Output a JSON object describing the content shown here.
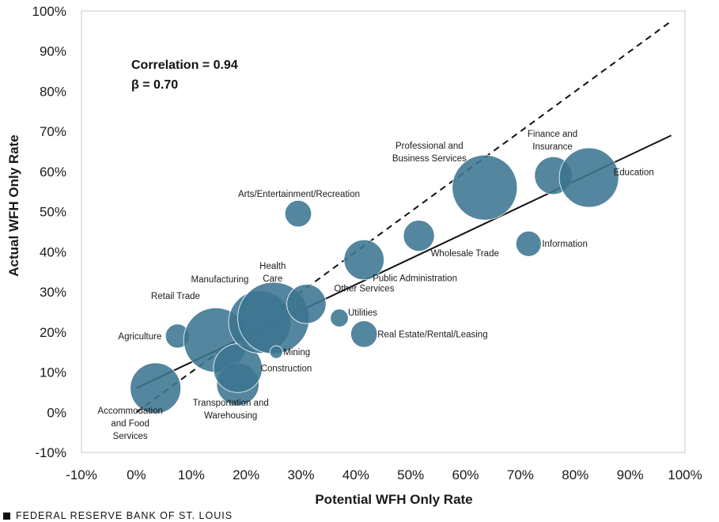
{
  "chart_data": {
    "type": "scatter",
    "xlabel": "Potential WFH Only Rate",
    "ylabel": "Actual WFH Only Rate",
    "xlim": [
      -10,
      100
    ],
    "ylim": [
      -10,
      100
    ],
    "x_ticks": [
      "-10%",
      "0%",
      "10%",
      "20%",
      "30%",
      "40%",
      "50%",
      "60%",
      "70%",
      "80%",
      "90%",
      "100%"
    ],
    "y_ticks": [
      "-10%",
      "0%",
      "10%",
      "20%",
      "30%",
      "40%",
      "50%",
      "60%",
      "70%",
      "80%",
      "90%",
      "100%"
    ],
    "grid": false,
    "annotations": {
      "correlation": "Correlation  = 0.94",
      "beta": "β = 0.70"
    },
    "lines": [
      {
        "style": "solid",
        "x": [
          0,
          97.5
        ],
        "y": [
          6,
          69
        ]
      },
      {
        "style": "dashed",
        "x": [
          0,
          97.5
        ],
        "y": [
          0,
          97.5
        ]
      }
    ],
    "points": [
      {
        "label": "Accommodation\nand Food\nServices",
        "x": 3.5,
        "y": 6,
        "size": 4.0
      },
      {
        "label": "Agriculture",
        "x": 7.5,
        "y": 19,
        "size": 0.9
      },
      {
        "label": "Retail Trade",
        "x": 14.5,
        "y": 18,
        "size": 6.5
      },
      {
        "label": "Transportation and\nWarehousing",
        "x": 18.5,
        "y": 7,
        "size": 2.8
      },
      {
        "label": "Construction",
        "x": 18.5,
        "y": 11,
        "size": 3.7
      },
      {
        "label": "Manufacturing",
        "x": 22.5,
        "y": 22.5,
        "size": 6.1
      },
      {
        "label": "Health\nCare",
        "x": 25,
        "y": 23.5,
        "size": 8.0
      },
      {
        "label": "Mining",
        "x": 25.5,
        "y": 15,
        "size": 0.25
      },
      {
        "label": "Arts/Entertainment/Recreation",
        "x": 29.5,
        "y": 49.5,
        "size": 1.1
      },
      {
        "label": "Other Services",
        "x": 31,
        "y": 27,
        "size": 2.4
      },
      {
        "label": "Utilities",
        "x": 37,
        "y": 23.5,
        "size": 0.5
      },
      {
        "label": "Public Administration",
        "x": 41.5,
        "y": 38,
        "size": 2.5
      },
      {
        "label": "Real Estate/Rental/Leasing",
        "x": 41.5,
        "y": 19.5,
        "size": 1.1
      },
      {
        "label": "Wholesale Trade",
        "x": 51.5,
        "y": 44,
        "size": 1.5
      },
      {
        "label": "Professional and\nBusiness Services",
        "x": 63.5,
        "y": 56,
        "size": 6.6
      },
      {
        "label": "Information",
        "x": 71.5,
        "y": 42,
        "size": 1.0
      },
      {
        "label": "Finance and\nInsurance",
        "x": 76,
        "y": 59,
        "size": 2.2
      },
      {
        "label": "Education",
        "x": 82.5,
        "y": 58.5,
        "size": 5.5
      }
    ],
    "series_color": "#3c7592"
  },
  "footer": {
    "source": "FEDERAL RESERVE BANK OF ST. LOUIS"
  }
}
